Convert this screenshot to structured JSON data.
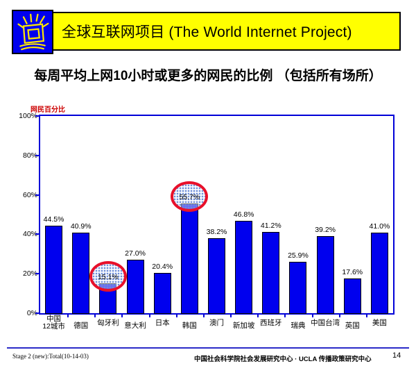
{
  "slide": {
    "header": {
      "title": "全球互联网项目 (The World Internet Project)",
      "icon": "shining-screen-icon"
    },
    "subtitle": "每周平均上网10小时或更多的网民的比例 （包括所有场所）",
    "footer": {
      "left": "Stage 2 (new):Total(10-14-03)",
      "center": "中国社会科学院社会发展研究中心 · UCLA 传播政策研究中心",
      "page_number": "14"
    }
  },
  "chart_data": {
    "type": "bar",
    "title": "",
    "xlabel": "",
    "ylabel": "网民百分比",
    "categories": [
      "中国\n12城市",
      "德国",
      "匈牙利",
      "意大利",
      "日本",
      "韩国",
      "澳门",
      "新加坡",
      "西班牙",
      "瑞典",
      "中国台湾",
      "英国",
      "美国"
    ],
    "values": [
      44.5,
      40.9,
      15.1,
      27.0,
      20.4,
      55.7,
      38.2,
      46.8,
      41.2,
      25.9,
      39.2,
      17.6,
      41.0
    ],
    "value_labels": [
      "44.5%",
      "40.9%",
      "15.1%",
      "27.0%",
      "20.4%",
      "55.7%",
      "38.2%",
      "46.8%",
      "41.2%",
      "25.9%",
      "39.2%",
      "17.6%",
      "41.0%"
    ],
    "ylim": [
      0,
      100
    ],
    "yticks": [
      0,
      20,
      40,
      60,
      80,
      100
    ],
    "ytick_labels": [
      "0%",
      "20%",
      "40%",
      "60%",
      "80%",
      "100%"
    ],
    "grid": false,
    "legend": null,
    "highlighted_categories": [
      "匈牙利",
      "韩国"
    ],
    "highlight_style": "red-ellipse-with-blue-dot-fill"
  },
  "colors": {
    "banner_bg": "#FFFF00",
    "banner_icon_bg": "#0000EE",
    "bar": "#0000EE",
    "axis": "#0000D8",
    "ylabel_text": "#CC0000",
    "highlight_outline": "#E8102A",
    "footer_line": "#2A2AC8"
  }
}
